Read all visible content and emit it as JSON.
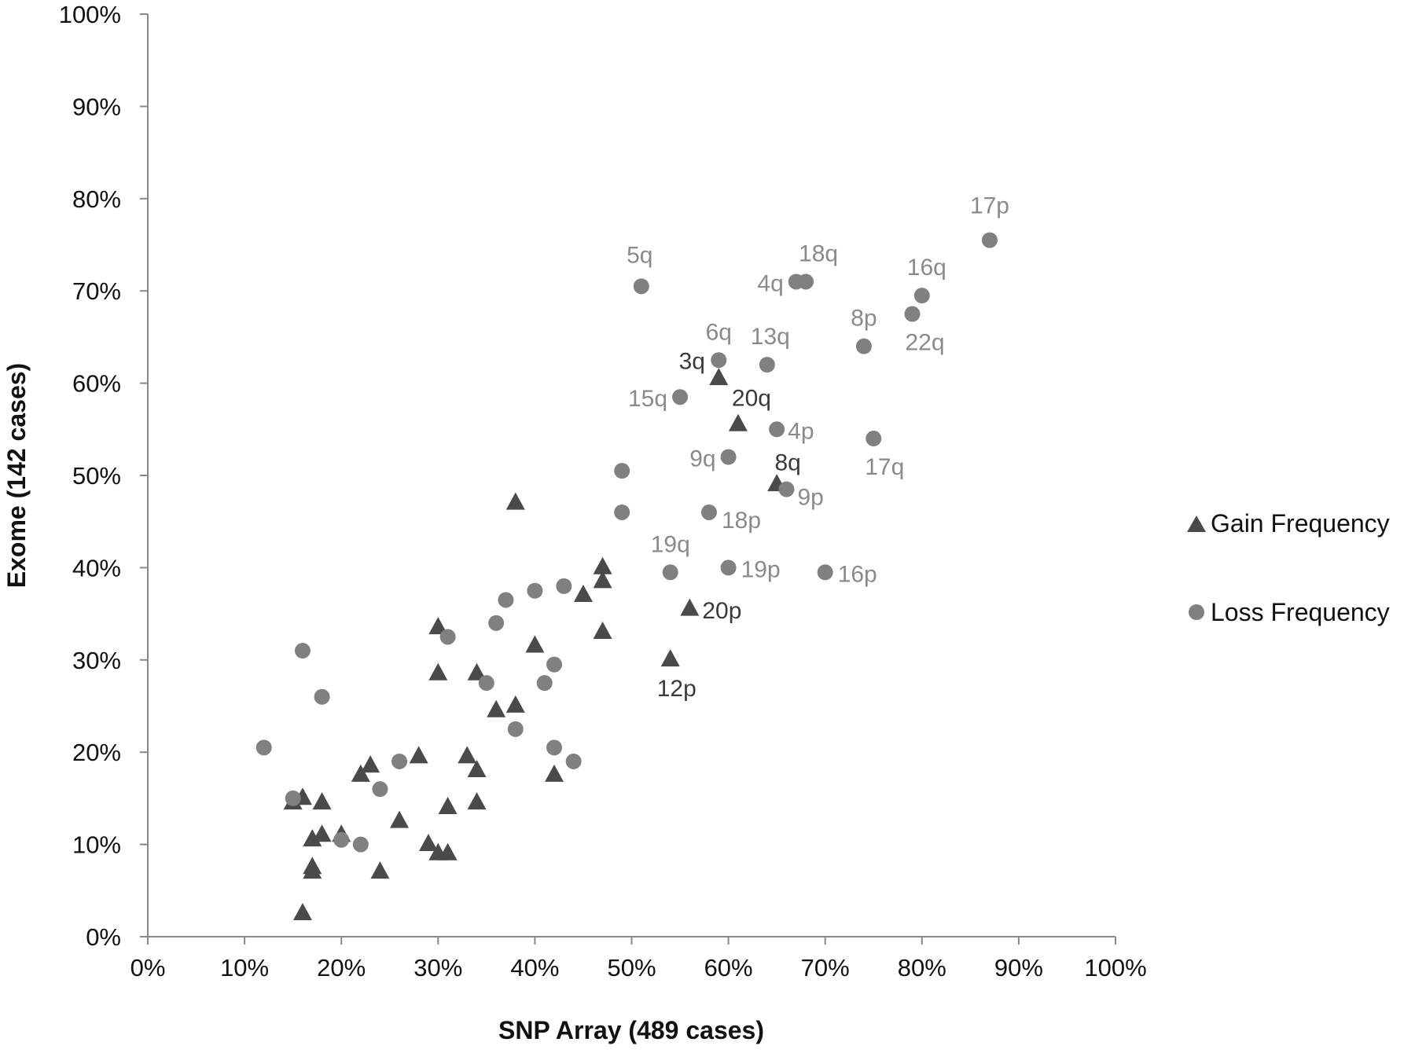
{
  "chart_data": {
    "type": "scatter",
    "xlabel": "SNP Array (489 cases)",
    "ylabel": "Exome (142 cases)",
    "xlim": [
      0,
      100
    ],
    "ylim": [
      0,
      100
    ],
    "x_ticks": [
      "0%",
      "10%",
      "20%",
      "30%",
      "40%",
      "50%",
      "60%",
      "70%",
      "80%",
      "90%",
      "100%"
    ],
    "y_ticks": [
      "0%",
      "10%",
      "20%",
      "30%",
      "40%",
      "50%",
      "60%",
      "70%",
      "80%",
      "90%",
      "100%"
    ],
    "grid": false,
    "legend_position": "right",
    "series": [
      {
        "name": "Gain Frequency",
        "marker": "triangle",
        "color": "#4a4a4a",
        "points": [
          {
            "x": 16,
            "y": 2.5
          },
          {
            "x": 15,
            "y": 14.5
          },
          {
            "x": 16,
            "y": 15
          },
          {
            "x": 18,
            "y": 14.5
          },
          {
            "x": 17,
            "y": 10.5
          },
          {
            "x": 18,
            "y": 11
          },
          {
            "x": 17,
            "y": 7
          },
          {
            "x": 17,
            "y": 7.5
          },
          {
            "x": 20,
            "y": 11
          },
          {
            "x": 22,
            "y": 17.5
          },
          {
            "x": 23,
            "y": 18.5
          },
          {
            "x": 24,
            "y": 7
          },
          {
            "x": 26,
            "y": 12.5
          },
          {
            "x": 28,
            "y": 19.5
          },
          {
            "x": 29,
            "y": 10
          },
          {
            "x": 30,
            "y": 9
          },
          {
            "x": 31,
            "y": 9
          },
          {
            "x": 31,
            "y": 14
          },
          {
            "x": 33,
            "y": 19.5
          },
          {
            "x": 34,
            "y": 18
          },
          {
            "x": 34,
            "y": 14.5
          },
          {
            "x": 30,
            "y": 33.5
          },
          {
            "x": 30,
            "y": 28.5
          },
          {
            "x": 34,
            "y": 28.5
          },
          {
            "x": 36,
            "y": 24.5
          },
          {
            "x": 38,
            "y": 25
          },
          {
            "x": 38,
            "y": 47
          },
          {
            "x": 40,
            "y": 31.5
          },
          {
            "x": 42,
            "y": 17.5
          },
          {
            "x": 45,
            "y": 37
          },
          {
            "x": 47,
            "y": 40
          },
          {
            "x": 47,
            "y": 38.5
          },
          {
            "x": 47,
            "y": 33
          },
          {
            "x": 54,
            "y": 30,
            "label": "12p"
          },
          {
            "x": 56,
            "y": 35.5,
            "label": "20p"
          },
          {
            "x": 59,
            "y": 60.5,
            "label": "3q"
          },
          {
            "x": 61,
            "y": 55.5,
            "label": "20q"
          },
          {
            "x": 65,
            "y": 49,
            "label": "8q"
          }
        ]
      },
      {
        "name": "Loss Frequency",
        "marker": "circle",
        "color": "#808080",
        "points": [
          {
            "x": 12,
            "y": 20.5
          },
          {
            "x": 15,
            "y": 15
          },
          {
            "x": 16,
            "y": 31
          },
          {
            "x": 18,
            "y": 26
          },
          {
            "x": 20,
            "y": 10.5
          },
          {
            "x": 22,
            "y": 10
          },
          {
            "x": 24,
            "y": 16
          },
          {
            "x": 26,
            "y": 19
          },
          {
            "x": 31,
            "y": 32.5
          },
          {
            "x": 35,
            "y": 27.5
          },
          {
            "x": 36,
            "y": 34
          },
          {
            "x": 37,
            "y": 36.5
          },
          {
            "x": 38,
            "y": 22.5
          },
          {
            "x": 40,
            "y": 37.5
          },
          {
            "x": 41,
            "y": 27.5
          },
          {
            "x": 42,
            "y": 29.5
          },
          {
            "x": 42,
            "y": 20.5
          },
          {
            "x": 43,
            "y": 38
          },
          {
            "x": 44,
            "y": 19
          },
          {
            "x": 49,
            "y": 50.5
          },
          {
            "x": 49,
            "y": 46
          },
          {
            "x": 51,
            "y": 70.5,
            "label": "5q"
          },
          {
            "x": 54,
            "y": 39.5,
            "label": "19q"
          },
          {
            "x": 55,
            "y": 58.5,
            "label": "15q"
          },
          {
            "x": 58,
            "y": 46,
            "label": "18p"
          },
          {
            "x": 59,
            "y": 62.5,
            "label": "6q"
          },
          {
            "x": 60,
            "y": 52,
            "label": "9q"
          },
          {
            "x": 60,
            "y": 40,
            "label": "19p"
          },
          {
            "x": 64,
            "y": 62,
            "label": "13q"
          },
          {
            "x": 65,
            "y": 55,
            "label": "4p"
          },
          {
            "x": 66,
            "y": 48.5,
            "label": "9p"
          },
          {
            "x": 67,
            "y": 71,
            "label": "4q"
          },
          {
            "x": 68,
            "y": 71,
            "label": "18q"
          },
          {
            "x": 70,
            "y": 39.5,
            "label": "16p"
          },
          {
            "x": 74,
            "y": 64,
            "label": "8p"
          },
          {
            "x": 75,
            "y": 54,
            "label": "17q"
          },
          {
            "x": 79,
            "y": 67.5,
            "label": "22q"
          },
          {
            "x": 80,
            "y": 69.5,
            "label": "16q"
          },
          {
            "x": 87,
            "y": 75.5,
            "label": "17p"
          }
        ]
      }
    ]
  }
}
